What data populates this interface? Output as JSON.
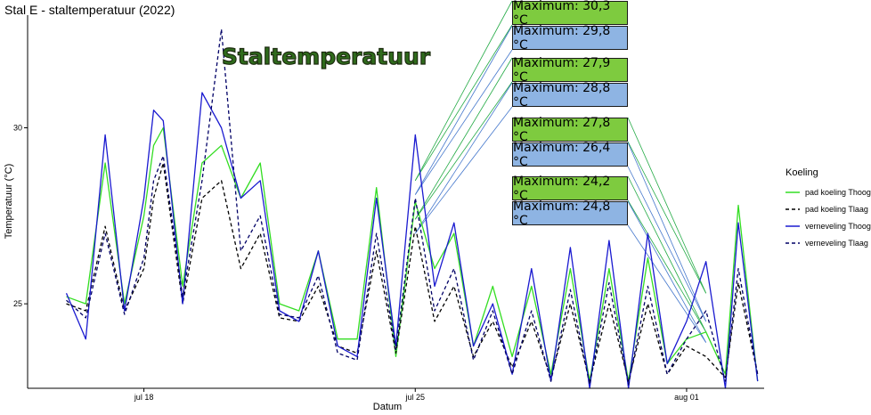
{
  "chart_data": {
    "type": "line",
    "title": "Stal E - staltemperatuur (2022)",
    "inner_title": "Staltemperatuur",
    "xlabel": "Datum",
    "ylabel": "Temperatuur (°C)",
    "x_range": [
      "2022-07-15T00:00",
      "2022-08-03T00:00"
    ],
    "ylim": [
      22.6,
      33.2
    ],
    "x_ticks": [
      {
        "date": "2022-07-18",
        "label": "jul 18"
      },
      {
        "date": "2022-07-25",
        "label": "jul 25"
      },
      {
        "date": "2022-08-01",
        "label": "aug 01"
      }
    ],
    "y_ticks": [
      {
        "value": 25,
        "label": "25"
      },
      {
        "value": 30,
        "label": "30"
      }
    ],
    "grid": false,
    "legend": {
      "title": "Koeling",
      "position": "right",
      "entries": [
        {
          "label": "pad koeling Thoog",
          "color": "#33dd22",
          "dash": "solid"
        },
        {
          "label": "pad koeling Tlaag",
          "color": "#000000",
          "dash": "dashed"
        },
        {
          "label": "verneveling Thoog",
          "color": "#1a1ad0",
          "dash": "solid"
        },
        {
          "label": "verneveling Tlaag",
          "color": "#000066",
          "dash": "dashed"
        }
      ]
    },
    "series": [
      {
        "name": "pad koeling Thoog",
        "color": "#33dd22",
        "dash": "solid",
        "points": [
          [
            "2022-07-16T00:00",
            25.2
          ],
          [
            "2022-07-16T12:00",
            25.0
          ],
          [
            "2022-07-17T00:00",
            29.0
          ],
          [
            "2022-07-17T12:00",
            25.0
          ],
          [
            "2022-07-18T00:00",
            27.5
          ],
          [
            "2022-07-18T06:00",
            29.5
          ],
          [
            "2022-07-18T12:00",
            30.0
          ],
          [
            "2022-07-19T00:00",
            25.5
          ],
          [
            "2022-07-19T12:00",
            29.0
          ],
          [
            "2022-07-20T00:00",
            29.5
          ],
          [
            "2022-07-20T12:00",
            28.0
          ],
          [
            "2022-07-21T00:00",
            29.0
          ],
          [
            "2022-07-21T12:00",
            25.0
          ],
          [
            "2022-07-22T00:00",
            24.8
          ],
          [
            "2022-07-22T12:00",
            26.5
          ],
          [
            "2022-07-23T00:00",
            24.0
          ],
          [
            "2022-07-23T12:00",
            24.0
          ],
          [
            "2022-07-24T00:00",
            28.3
          ],
          [
            "2022-07-24T12:00",
            23.5
          ],
          [
            "2022-07-25T00:00",
            27.9
          ],
          [
            "2022-07-25T12:00",
            26.0
          ],
          [
            "2022-07-26T00:00",
            27.0
          ],
          [
            "2022-07-26T12:00",
            23.8
          ],
          [
            "2022-07-27T00:00",
            25.5
          ],
          [
            "2022-07-27T12:00",
            23.5
          ],
          [
            "2022-07-28T00:00",
            25.5
          ],
          [
            "2022-07-28T12:00",
            23.0
          ],
          [
            "2022-07-29T00:00",
            26.0
          ],
          [
            "2022-07-29T12:00",
            22.8
          ],
          [
            "2022-07-30T00:00",
            26.0
          ],
          [
            "2022-07-30T12:00",
            22.8
          ],
          [
            "2022-07-31T00:00",
            26.3
          ],
          [
            "2022-07-31T12:00",
            23.3
          ],
          [
            "2022-08-01T00:00",
            24.0
          ],
          [
            "2022-08-01T12:00",
            24.2
          ],
          [
            "2022-08-02T00:00",
            23.0
          ],
          [
            "2022-08-02T08:00",
            27.8
          ],
          [
            "2022-08-02T20:00",
            22.8
          ]
        ]
      },
      {
        "name": "pad koeling Tlaag",
        "color": "#000000",
        "dash": "dashed",
        "points": [
          [
            "2022-07-16T00:00",
            25.0
          ],
          [
            "2022-07-16T12:00",
            24.8
          ],
          [
            "2022-07-17T00:00",
            27.2
          ],
          [
            "2022-07-17T12:00",
            24.8
          ],
          [
            "2022-07-18T00:00",
            26.0
          ],
          [
            "2022-07-18T06:00",
            28.0
          ],
          [
            "2022-07-18T12:00",
            29.0
          ],
          [
            "2022-07-19T00:00",
            25.0
          ],
          [
            "2022-07-19T12:00",
            28.0
          ],
          [
            "2022-07-20T00:00",
            28.5
          ],
          [
            "2022-07-20T12:00",
            26.0
          ],
          [
            "2022-07-21T00:00",
            27.0
          ],
          [
            "2022-07-21T12:00",
            24.6
          ],
          [
            "2022-07-22T00:00",
            24.5
          ],
          [
            "2022-07-22T12:00",
            25.5
          ],
          [
            "2022-07-23T00:00",
            23.8
          ],
          [
            "2022-07-23T12:00",
            23.6
          ],
          [
            "2022-07-24T00:00",
            26.5
          ],
          [
            "2022-07-24T12:00",
            23.6
          ],
          [
            "2022-07-25T00:00",
            27.2
          ],
          [
            "2022-07-25T12:00",
            24.5
          ],
          [
            "2022-07-26T00:00",
            25.5
          ],
          [
            "2022-07-26T12:00",
            23.5
          ],
          [
            "2022-07-27T00:00",
            24.5
          ],
          [
            "2022-07-27T12:00",
            23.2
          ],
          [
            "2022-07-28T00:00",
            24.5
          ],
          [
            "2022-07-28T12:00",
            22.9
          ],
          [
            "2022-07-29T00:00",
            25.0
          ],
          [
            "2022-07-29T12:00",
            22.8
          ],
          [
            "2022-07-30T00:00",
            25.0
          ],
          [
            "2022-07-30T12:00",
            22.8
          ],
          [
            "2022-07-31T00:00",
            25.0
          ],
          [
            "2022-07-31T12:00",
            23.0
          ],
          [
            "2022-08-01T00:00",
            23.8
          ],
          [
            "2022-08-01T12:00",
            23.5
          ],
          [
            "2022-08-02T00:00",
            22.9
          ],
          [
            "2022-08-02T08:00",
            25.6
          ],
          [
            "2022-08-02T20:00",
            23.0
          ]
        ]
      },
      {
        "name": "verneveling Thoog",
        "color": "#1a1ad0",
        "dash": "solid",
        "points": [
          [
            "2022-07-16T00:00",
            25.3
          ],
          [
            "2022-07-16T12:00",
            24.0
          ],
          [
            "2022-07-17T00:00",
            29.8
          ],
          [
            "2022-07-17T12:00",
            24.8
          ],
          [
            "2022-07-18T00:00",
            28.0
          ],
          [
            "2022-07-18T06:00",
            30.5
          ],
          [
            "2022-07-18T12:00",
            30.2
          ],
          [
            "2022-07-19T00:00",
            25.0
          ],
          [
            "2022-07-19T12:00",
            31.0
          ],
          [
            "2022-07-20T00:00",
            30.0
          ],
          [
            "2022-07-20T12:00",
            28.0
          ],
          [
            "2022-07-21T00:00",
            28.5
          ],
          [
            "2022-07-21T12:00",
            24.8
          ],
          [
            "2022-07-22T00:00",
            24.5
          ],
          [
            "2022-07-22T12:00",
            26.5
          ],
          [
            "2022-07-23T00:00",
            23.8
          ],
          [
            "2022-07-23T12:00",
            23.5
          ],
          [
            "2022-07-24T00:00",
            28.0
          ],
          [
            "2022-07-24T12:00",
            23.8
          ],
          [
            "2022-07-25T00:00",
            29.8
          ],
          [
            "2022-07-25T12:00",
            25.5
          ],
          [
            "2022-07-26T00:00",
            27.3
          ],
          [
            "2022-07-26T12:00",
            23.8
          ],
          [
            "2022-07-27T00:00",
            25.0
          ],
          [
            "2022-07-27T12:00",
            23.0
          ],
          [
            "2022-07-28T00:00",
            26.0
          ],
          [
            "2022-07-28T12:00",
            22.8
          ],
          [
            "2022-07-29T00:00",
            26.6
          ],
          [
            "2022-07-29T12:00",
            22.6
          ],
          [
            "2022-07-30T00:00",
            26.8
          ],
          [
            "2022-07-30T12:00",
            22.6
          ],
          [
            "2022-07-31T00:00",
            27.0
          ],
          [
            "2022-07-31T12:00",
            23.3
          ],
          [
            "2022-08-01T00:00",
            24.5
          ],
          [
            "2022-08-01T12:00",
            26.2
          ],
          [
            "2022-08-02T00:00",
            22.6
          ],
          [
            "2022-08-02T08:00",
            27.3
          ],
          [
            "2022-08-02T20:00",
            22.8
          ]
        ]
      },
      {
        "name": "verneveling Tlaag",
        "color": "#000066",
        "dash": "dashed",
        "points": [
          [
            "2022-07-16T00:00",
            25.1
          ],
          [
            "2022-07-16T12:00",
            24.6
          ],
          [
            "2022-07-17T00:00",
            27.0
          ],
          [
            "2022-07-17T12:00",
            24.7
          ],
          [
            "2022-07-18T00:00",
            26.3
          ],
          [
            "2022-07-18T06:00",
            28.5
          ],
          [
            "2022-07-18T12:00",
            29.2
          ],
          [
            "2022-07-19T00:00",
            25.2
          ],
          [
            "2022-07-19T12:00",
            28.5
          ],
          [
            "2022-07-20T00:00",
            32.8
          ],
          [
            "2022-07-20T12:00",
            26.5
          ],
          [
            "2022-07-21T00:00",
            27.5
          ],
          [
            "2022-07-21T12:00",
            24.7
          ],
          [
            "2022-07-22T00:00",
            24.6
          ],
          [
            "2022-07-22T12:00",
            25.8
          ],
          [
            "2022-07-23T00:00",
            23.6
          ],
          [
            "2022-07-23T12:00",
            23.4
          ],
          [
            "2022-07-24T00:00",
            27.0
          ],
          [
            "2022-07-24T12:00",
            23.7
          ],
          [
            "2022-07-25T00:00",
            28.0
          ],
          [
            "2022-07-25T12:00",
            24.8
          ],
          [
            "2022-07-26T00:00",
            26.0
          ],
          [
            "2022-07-26T12:00",
            23.4
          ],
          [
            "2022-07-27T00:00",
            24.8
          ],
          [
            "2022-07-27T12:00",
            23.0
          ],
          [
            "2022-07-28T00:00",
            24.8
          ],
          [
            "2022-07-28T12:00",
            22.8
          ],
          [
            "2022-07-29T00:00",
            25.4
          ],
          [
            "2022-07-29T12:00",
            22.7
          ],
          [
            "2022-07-30T00:00",
            25.6
          ],
          [
            "2022-07-30T12:00",
            22.7
          ],
          [
            "2022-07-31T00:00",
            25.5
          ],
          [
            "2022-07-31T12:00",
            23.0
          ],
          [
            "2022-08-01T00:00",
            24.0
          ],
          [
            "2022-08-01T12:00",
            24.8
          ],
          [
            "2022-08-02T00:00",
            22.8
          ],
          [
            "2022-08-02T08:00",
            26.0
          ],
          [
            "2022-08-02T20:00",
            23.0
          ]
        ]
      }
    ],
    "annotations": [
      {
        "label": "Maximum: 30,3 °C",
        "fill": "#7ecb3f",
        "line_color": "#22aa44",
        "target": [
          "2022-07-25T00:00",
          28.5
        ]
      },
      {
        "label": "Maximum: 29,8 °C",
        "fill": "#8eb4e3",
        "line_color": "#4477cc",
        "target": [
          "2022-07-25T00:00",
          28.1
        ]
      },
      {
        "label": "Maximum: 27,9 °C",
        "fill": "#7ecb3f",
        "line_color": "#22aa44",
        "target": [
          "2022-07-25T00:00",
          27.4
        ]
      },
      {
        "label": "Maximum: 28,8 °C",
        "fill": "#8eb4e3",
        "line_color": "#4477cc",
        "target": [
          "2022-07-25T00:00",
          27.0
        ]
      },
      {
        "label": "Maximum: 27,8 °C",
        "fill": "#7ecb3f",
        "line_color": "#22aa44",
        "target": [
          "2022-08-01T12:00",
          25.3
        ]
      },
      {
        "label": "Maximum: 26,4 °C",
        "fill": "#8eb4e3",
        "line_color": "#4477cc",
        "target": [
          "2022-08-01T12:00",
          24.5
        ]
      },
      {
        "label": "Maximum: 24,2 °C",
        "fill": "#7ecb3f",
        "line_color": "#22aa44",
        "target": [
          "2022-08-01T12:00",
          24.2
        ]
      },
      {
        "label": "Maximum: 24,8 °C",
        "fill": "#8eb4e3",
        "line_color": "#4477cc",
        "target": [
          "2022-08-01T12:00",
          23.9
        ]
      }
    ]
  }
}
